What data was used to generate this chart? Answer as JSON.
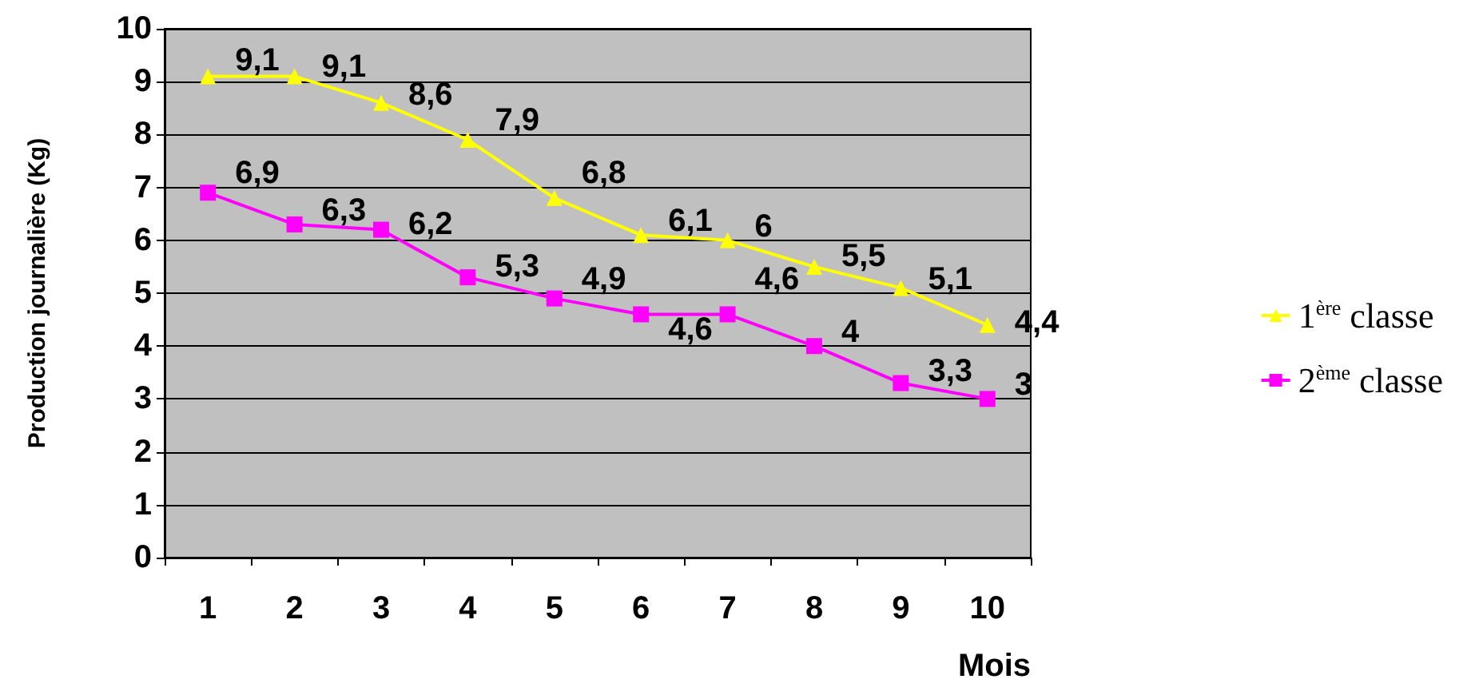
{
  "chart_data": {
    "type": "line",
    "xlabel": "Mois",
    "ylabel": "Production journalière (Kg)",
    "categories": [
      "1",
      "2",
      "3",
      "4",
      "5",
      "6",
      "7",
      "8",
      "9",
      "10"
    ],
    "ylim": [
      0,
      10
    ],
    "yticks": [
      0,
      1,
      2,
      3,
      4,
      5,
      6,
      7,
      8,
      9,
      10
    ],
    "grid": "y",
    "legend": "right",
    "series": [
      {
        "name": "1$^{ère}$ classe",
        "color": "#ffff00",
        "marker": "triangle",
        "values": [
          9.1,
          9.1,
          8.6,
          7.9,
          6.8,
          6.1,
          6,
          5.5,
          5.1,
          4.4
        ],
        "value_labels": [
          "9,1",
          "9,1",
          "8,6",
          "7,9",
          "6,8",
          "6,1",
          "6",
          "5,5",
          "5,1",
          "4,4"
        ]
      },
      {
        "name": "2$^{ème}$ classe",
        "color": "#ff00ff",
        "marker": "square",
        "values": [
          6.9,
          6.3,
          6.2,
          5.3,
          4.9,
          4.6,
          4.6,
          4,
          3.3,
          3
        ],
        "value_labels": [
          "6,9",
          "6,3",
          "6,2",
          "5,3",
          "4,9",
          "4,6",
          "4,6",
          "4",
          "3,3",
          "3"
        ]
      }
    ]
  }
}
